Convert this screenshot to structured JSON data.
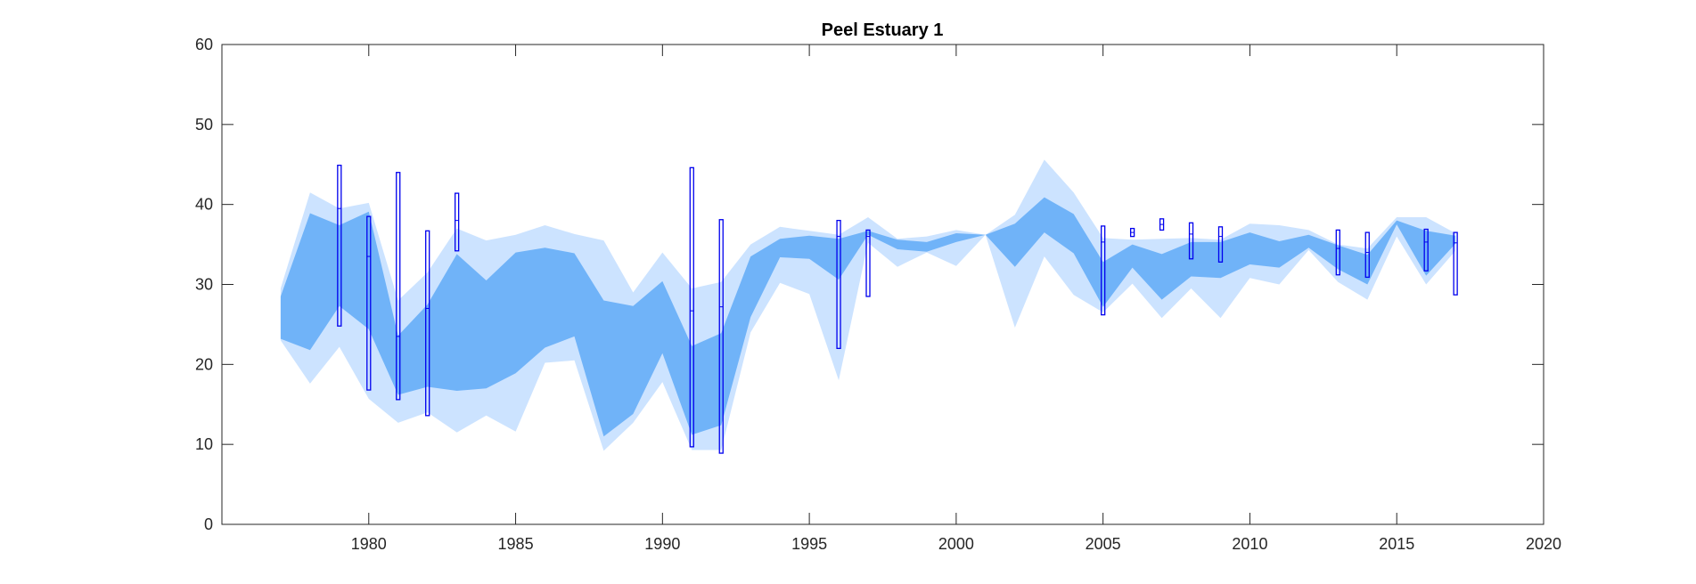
{
  "chart_data": {
    "type": "area",
    "title": "Peel Estuary 1",
    "xlabel": "",
    "ylabel": "",
    "xlim": [
      1975,
      2020
    ],
    "ylim": [
      0,
      60
    ],
    "x_ticks": [
      1980,
      1985,
      1990,
      1995,
      2000,
      2005,
      2010,
      2015,
      2020
    ],
    "y_ticks": [
      0,
      10,
      20,
      30,
      40,
      50,
      60
    ],
    "grid": false,
    "colors": {
      "outer_band": "#cce3ff",
      "inner_band": "#70b3f8",
      "box": "#0000ee",
      "axis": "#262626"
    },
    "years": [
      1977,
      1978,
      1979,
      1980,
      1981,
      1982,
      1983,
      1984,
      1985,
      1986,
      1987,
      1988,
      1989,
      1990,
      1991,
      1992,
      1993,
      1994,
      1995,
      1996,
      1997,
      1998,
      1999,
      2000,
      2001,
      2002,
      2003,
      2004,
      2005,
      2006,
      2007,
      2008,
      2009,
      2010,
      2011,
      2012,
      2013,
      2014,
      2015,
      2016,
      2017
    ],
    "outer_band": {
      "upper": [
        29.5,
        41.5,
        39.5,
        40.2,
        28.0,
        31.5,
        37.0,
        35.5,
        36.2,
        37.4,
        36.3,
        35.5,
        29.0,
        34.0,
        29.5,
        30.3,
        35.0,
        37.2,
        36.7,
        36.2,
        38.4,
        35.7,
        36.0,
        36.8,
        36.2,
        38.7,
        45.6,
        41.5,
        35.8,
        35.6,
        35.7,
        35.8,
        35.6,
        37.6,
        37.4,
        36.8,
        35.0,
        34.5,
        38.4,
        38.4,
        36.4
      ],
      "lower": [
        23.0,
        17.6,
        22.2,
        15.7,
        12.7,
        14.0,
        11.5,
        13.6,
        11.6,
        20.2,
        20.5,
        9.2,
        12.7,
        17.8,
        9.3,
        9.3,
        24.0,
        30.2,
        28.8,
        18.0,
        35.2,
        32.2,
        34.0,
        32.3,
        36.2,
        24.6,
        33.5,
        28.7,
        26.5,
        30.1,
        25.8,
        29.5,
        25.8,
        30.8,
        30.0,
        34.3,
        30.3,
        28.1,
        36.0,
        30.0,
        34.2
      ]
    },
    "inner_band": {
      "upper": [
        28.5,
        38.9,
        37.4,
        39.1,
        23.6,
        27.5,
        33.8,
        30.5,
        34.0,
        34.6,
        33.9,
        28.0,
        27.3,
        30.4,
        22.3,
        23.9,
        33.5,
        35.7,
        36.1,
        35.7,
        36.7,
        35.6,
        35.3,
        36.4,
        36.2,
        37.6,
        40.9,
        38.8,
        32.8,
        35.0,
        33.8,
        35.3,
        35.3,
        36.5,
        35.4,
        36.2,
        34.9,
        33.7,
        38.0,
        36.7,
        36.1
      ],
      "lower": [
        23.2,
        21.8,
        27.3,
        24.4,
        16.2,
        17.2,
        16.7,
        17.0,
        18.9,
        22.1,
        23.5,
        11.0,
        13.8,
        21.4,
        11.2,
        12.4,
        25.9,
        33.4,
        33.2,
        30.6,
        36.2,
        34.4,
        34.1,
        35.3,
        36.2,
        32.2,
        36.5,
        33.9,
        27.2,
        32.1,
        28.1,
        31.0,
        30.8,
        32.5,
        32.1,
        34.6,
        31.9,
        30.0,
        37.5,
        31.1,
        35.1
      ]
    },
    "boxes": [
      {
        "x": 1979,
        "lo": 24.8,
        "hi": 44.9,
        "mid": 39.5
      },
      {
        "x": 1980,
        "lo": 16.8,
        "hi": 38.5,
        "mid": 33.5
      },
      {
        "x": 1981,
        "lo": 15.6,
        "hi": 44.0,
        "mid": 23.5
      },
      {
        "x": 1982,
        "lo": 13.6,
        "hi": 36.7,
        "mid": 27.0
      },
      {
        "x": 1983,
        "lo": 34.2,
        "hi": 41.4,
        "mid": 38.0
      },
      {
        "x": 1991,
        "lo": 9.7,
        "hi": 44.6,
        "mid": 26.7
      },
      {
        "x": 1992,
        "lo": 8.9,
        "hi": 38.1,
        "mid": 27.2
      },
      {
        "x": 1996,
        "lo": 22.0,
        "hi": 38.0,
        "mid": 36.0
      },
      {
        "x": 1997,
        "lo": 28.5,
        "hi": 36.8,
        "mid": 36.0
      },
      {
        "x": 2005,
        "lo": 26.2,
        "hi": 37.3,
        "mid": 35.3
      },
      {
        "x": 2006,
        "lo": 36.0,
        "hi": 37.0,
        "mid": 36.5
      },
      {
        "x": 2007,
        "lo": 36.8,
        "hi": 38.2,
        "mid": 37.5
      },
      {
        "x": 2008,
        "lo": 33.2,
        "hi": 37.7,
        "mid": 36.3
      },
      {
        "x": 2009,
        "lo": 32.8,
        "hi": 37.2,
        "mid": 36.0
      },
      {
        "x": 2013,
        "lo": 31.2,
        "hi": 36.8,
        "mid": 34.5
      },
      {
        "x": 2014,
        "lo": 30.9,
        "hi": 36.5,
        "mid": 34.0
      },
      {
        "x": 2016,
        "lo": 31.7,
        "hi": 36.9,
        "mid": 35.3
      },
      {
        "x": 2017,
        "lo": 28.7,
        "hi": 36.5,
        "mid": 35.2
      }
    ]
  }
}
